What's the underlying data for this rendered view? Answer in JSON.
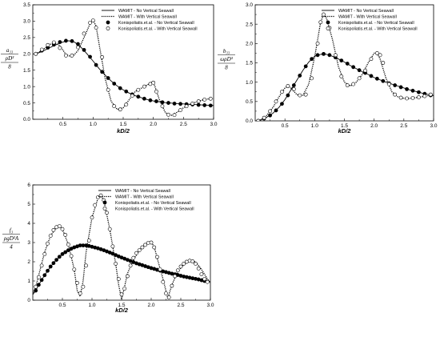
{
  "chart_data": [
    {
      "type": "line",
      "xlabel": "kD/2",
      "ylabel": {
        "numerator": "a₃₃",
        "denominator_top": "ρD³",
        "denominator_bottom": "8"
      },
      "xlim": [
        0.0,
        3.0
      ],
      "ylim": [
        0.0,
        3.5
      ],
      "xticks": [
        "0.5",
        "1.0",
        "1.5",
        "2.0",
        "2.5",
        "3.0"
      ],
      "yticks": [
        "0.0",
        "0.5",
        "1.0",
        "1.5",
        "2.0",
        "2.5",
        "3.0",
        "3.5"
      ],
      "legend_position": "top-right",
      "series": [
        {
          "name": "WAMIT - No Vertical Seawall",
          "style": "solid",
          "x": [
            0.05,
            0.15,
            0.25,
            0.35,
            0.45,
            0.55,
            0.6,
            0.7,
            0.8,
            0.9,
            1.0,
            1.1,
            1.2,
            1.3,
            1.4,
            1.5,
            1.6,
            1.7,
            1.8,
            1.9,
            2.0,
            2.2,
            2.4,
            2.6,
            2.8,
            3.0
          ],
          "y": [
            2.0,
            2.07,
            2.16,
            2.25,
            2.33,
            2.39,
            2.4,
            2.35,
            2.2,
            2.0,
            1.78,
            1.55,
            1.35,
            1.17,
            1.02,
            0.9,
            0.8,
            0.72,
            0.66,
            0.6,
            0.56,
            0.51,
            0.48,
            0.46,
            0.44,
            0.42
          ]
        },
        {
          "name": "WAMIT - With Vertical Seawall",
          "style": "dotted",
          "x": [
            0.05,
            0.15,
            0.25,
            0.35,
            0.45,
            0.55,
            0.65,
            0.75,
            0.85,
            0.95,
            1.0,
            1.05,
            1.1,
            1.2,
            1.3,
            1.4,
            1.5,
            1.6,
            1.7,
            1.8,
            1.9,
            2.0,
            2.1,
            2.2,
            2.3,
            2.4,
            2.5,
            2.6,
            2.7,
            2.8,
            2.9,
            3.0
          ],
          "y": [
            2.0,
            2.1,
            2.25,
            2.35,
            2.25,
            1.98,
            1.9,
            2.1,
            2.5,
            2.92,
            3.03,
            2.85,
            2.3,
            1.25,
            0.55,
            0.3,
            0.35,
            0.6,
            0.85,
            0.95,
            1.05,
            1.15,
            0.6,
            0.2,
            0.12,
            0.22,
            0.35,
            0.45,
            0.52,
            0.58,
            0.62,
            0.63
          ]
        },
        {
          "name": "Konispoliatis.et.al. - No Vertical Seawall",
          "style": "filled-circle",
          "x": [
            0.05,
            0.15,
            0.25,
            0.35,
            0.45,
            0.55,
            0.65,
            0.75,
            0.85,
            0.95,
            1.05,
            1.15,
            1.25,
            1.35,
            1.45,
            1.55,
            1.65,
            1.75,
            1.85,
            1.95,
            2.05,
            2.15,
            2.25,
            2.35,
            2.45,
            2.55,
            2.65,
            2.75,
            2.85,
            2.95
          ],
          "y": [
            2.0,
            2.1,
            2.19,
            2.28,
            2.36,
            2.4,
            2.39,
            2.3,
            2.12,
            1.91,
            1.66,
            1.45,
            1.26,
            1.09,
            0.95,
            0.85,
            0.76,
            0.69,
            0.63,
            0.58,
            0.55,
            0.52,
            0.5,
            0.48,
            0.47,
            0.46,
            0.45,
            0.44,
            0.43,
            0.42
          ]
        },
        {
          "name": "Konispoliatis.et.al. - With Vertical Seawall",
          "style": "open-circle",
          "x": [
            0.05,
            0.15,
            0.25,
            0.35,
            0.45,
            0.55,
            0.65,
            0.75,
            0.85,
            0.95,
            1.0,
            1.05,
            1.15,
            1.25,
            1.35,
            1.45,
            1.55,
            1.65,
            1.75,
            1.85,
            1.95,
            2.0,
            2.05,
            2.15,
            2.25,
            2.35,
            2.45,
            2.55,
            2.65,
            2.75,
            2.85,
            2.95
          ],
          "y": [
            2.0,
            2.13,
            2.27,
            2.35,
            2.18,
            1.95,
            1.95,
            2.2,
            2.62,
            2.95,
            3.02,
            2.8,
            1.9,
            0.9,
            0.4,
            0.3,
            0.45,
            0.72,
            0.9,
            1.0,
            1.08,
            1.12,
            0.85,
            0.4,
            0.14,
            0.13,
            0.28,
            0.4,
            0.48,
            0.55,
            0.6,
            0.63
          ]
        }
      ]
    },
    {
      "type": "line",
      "xlabel": "kD/2",
      "ylabel": {
        "numerator": "b₃₃",
        "denominator_top": "ωρD³",
        "denominator_bottom": "8"
      },
      "xlim": [
        0.0,
        3.0
      ],
      "ylim": [
        0.0,
        3.0
      ],
      "xticks": [
        "0.5",
        "1.0",
        "1.5",
        "2.0",
        "2.5",
        "3.0"
      ],
      "yticks": [
        "0.0",
        "0.5",
        "1.0",
        "1.5",
        "2.0",
        "2.5",
        "3.0"
      ],
      "legend_position": "top-right",
      "series": [
        {
          "name": "WAMIT - No Vertical Seawall",
          "style": "solid",
          "x": [
            0.05,
            0.1,
            0.2,
            0.3,
            0.4,
            0.5,
            0.6,
            0.7,
            0.8,
            0.9,
            1.0,
            1.1,
            1.2,
            1.3,
            1.4,
            1.5,
            1.6,
            1.7,
            1.8,
            1.9,
            2.0,
            2.2,
            2.4,
            2.6,
            2.8,
            3.0
          ],
          "y": [
            0.0,
            0.03,
            0.1,
            0.2,
            0.35,
            0.55,
            0.8,
            1.05,
            1.3,
            1.52,
            1.67,
            1.72,
            1.72,
            1.67,
            1.6,
            1.52,
            1.43,
            1.35,
            1.27,
            1.2,
            1.12,
            1.0,
            0.9,
            0.8,
            0.72,
            0.65
          ]
        },
        {
          "name": "WAMIT - With Vertical Seawall",
          "style": "dotted",
          "x": [
            0.05,
            0.1,
            0.2,
            0.3,
            0.4,
            0.5,
            0.55,
            0.6,
            0.7,
            0.8,
            0.9,
            1.0,
            1.1,
            1.15,
            1.2,
            1.3,
            1.4,
            1.5,
            1.6,
            1.7,
            1.8,
            1.9,
            2.0,
            2.05,
            2.1,
            2.2,
            2.3,
            2.4,
            2.5,
            2.6,
            2.7,
            2.8,
            2.9,
            3.0
          ],
          "y": [
            0.0,
            0.03,
            0.15,
            0.35,
            0.62,
            0.85,
            0.9,
            0.85,
            0.68,
            0.65,
            0.95,
            1.65,
            2.55,
            2.75,
            2.65,
            2.1,
            1.4,
            1.0,
            0.9,
            1.0,
            1.2,
            1.5,
            1.75,
            1.75,
            1.6,
            1.1,
            0.75,
            0.62,
            0.58,
            0.58,
            0.6,
            0.62,
            0.65,
            0.68
          ]
        },
        {
          "name": "Konispoliatis.et.al. - No Vertical Seawall",
          "style": "filled-circle",
          "x": [
            0.05,
            0.15,
            0.25,
            0.35,
            0.45,
            0.55,
            0.65,
            0.75,
            0.85,
            0.95,
            1.05,
            1.15,
            1.25,
            1.35,
            1.45,
            1.55,
            1.65,
            1.75,
            1.85,
            1.95,
            2.05,
            2.15,
            2.25,
            2.35,
            2.45,
            2.55,
            2.65,
            2.75,
            2.85,
            2.95
          ],
          "y": [
            0.0,
            0.06,
            0.14,
            0.27,
            0.44,
            0.66,
            0.92,
            1.17,
            1.41,
            1.6,
            1.7,
            1.73,
            1.7,
            1.64,
            1.56,
            1.48,
            1.39,
            1.31,
            1.24,
            1.16,
            1.09,
            1.03,
            0.97,
            0.92,
            0.87,
            0.82,
            0.78,
            0.74,
            0.7,
            0.66
          ]
        },
        {
          "name": "Konispoliatis.et.al. - With Vertical Seawall",
          "style": "open-circle",
          "x": [
            0.05,
            0.15,
            0.25,
            0.35,
            0.45,
            0.55,
            0.65,
            0.75,
            0.85,
            0.95,
            1.05,
            1.1,
            1.15,
            1.25,
            1.35,
            1.45,
            1.55,
            1.65,
            1.75,
            1.85,
            1.95,
            2.05,
            2.1,
            2.15,
            2.25,
            2.35,
            2.45,
            2.55,
            2.65,
            2.75,
            2.85,
            2.95
          ],
          "y": [
            0.0,
            0.08,
            0.25,
            0.5,
            0.75,
            0.9,
            0.82,
            0.66,
            0.68,
            1.1,
            2.0,
            2.55,
            2.75,
            2.4,
            1.7,
            1.15,
            0.92,
            0.95,
            1.1,
            1.3,
            1.6,
            1.75,
            1.7,
            1.5,
            0.95,
            0.68,
            0.6,
            0.58,
            0.59,
            0.61,
            0.64,
            0.68
          ]
        }
      ]
    },
    {
      "type": "line",
      "xlabel": "kD/2",
      "ylabel": {
        "numerator": "f₃",
        "denominator_top": "ρgD²A",
        "denominator_bottom": "4"
      },
      "xlim": [
        0.0,
        3.0
      ],
      "ylim": [
        0,
        6
      ],
      "xticks": [
        "0.5",
        "1.0",
        "1.5",
        "2.0",
        "2.5",
        "3.0"
      ],
      "yticks": [
        "0",
        "1",
        "2",
        "3",
        "4",
        "5",
        "6"
      ],
      "legend_position": "top-right",
      "series": [
        {
          "name": "WAMIT - No Vertical Seawall",
          "style": "solid",
          "x": [
            0.0,
            0.05,
            0.1,
            0.2,
            0.3,
            0.4,
            0.5,
            0.6,
            0.7,
            0.8,
            0.9,
            1.0,
            1.1,
            1.2,
            1.3,
            1.4,
            1.5,
            1.6,
            1.7,
            1.8,
            1.9,
            2.0,
            2.2,
            2.4,
            2.6,
            2.8,
            3.0
          ],
          "y": [
            0.3,
            0.5,
            0.8,
            1.3,
            1.75,
            2.1,
            2.4,
            2.6,
            2.75,
            2.85,
            2.85,
            2.78,
            2.7,
            2.6,
            2.48,
            2.35,
            2.22,
            2.1,
            1.98,
            1.87,
            1.77,
            1.67,
            1.5,
            1.35,
            1.2,
            1.08,
            0.95
          ]
        },
        {
          "name": "WAMIT - With Vertical Seawall",
          "style": "dotted",
          "x": [
            0.0,
            0.05,
            0.1,
            0.2,
            0.3,
            0.4,
            0.45,
            0.5,
            0.6,
            0.7,
            0.75,
            0.8,
            0.85,
            0.9,
            1.0,
            1.1,
            1.15,
            1.2,
            1.3,
            1.4,
            1.45,
            1.5,
            1.55,
            1.6,
            1.7,
            1.8,
            1.9,
            2.0,
            2.05,
            2.1,
            2.2,
            2.28,
            2.35,
            2.45,
            2.55,
            2.65,
            2.75,
            2.85,
            2.95,
            3.0
          ],
          "y": [
            0.3,
            0.7,
            1.3,
            2.5,
            3.35,
            3.8,
            3.85,
            3.7,
            2.9,
            1.6,
            0.5,
            0.2,
            1.0,
            2.5,
            4.3,
            5.3,
            5.45,
            5.2,
            3.7,
            1.9,
            0.8,
            0.05,
            0.7,
            1.4,
            2.1,
            2.6,
            2.9,
            3.0,
            2.8,
            2.2,
            1.1,
            0.1,
            0.8,
            1.5,
            1.85,
            2.05,
            2.0,
            1.6,
            1.1,
            0.9
          ]
        },
        {
          "name": "Konispoliatis.et.al. - No Vertical Seawall",
          "style": "filled-circle",
          "x": [
            0.05,
            0.1,
            0.15,
            0.2,
            0.25,
            0.3,
            0.35,
            0.4,
            0.45,
            0.5,
            0.55,
            0.6,
            0.65,
            0.7,
            0.75,
            0.8,
            0.85,
            0.9,
            0.95,
            1.0,
            1.05,
            1.1,
            1.15,
            1.2,
            1.25,
            1.3,
            1.35,
            1.4,
            1.45,
            1.5,
            1.55,
            1.6,
            1.65,
            1.7,
            1.75,
            1.8,
            1.85,
            1.9,
            1.95,
            2.0,
            2.05,
            2.1,
            2.15,
            2.2,
            2.25,
            2.3,
            2.35,
            2.4,
            2.45,
            2.5,
            2.55,
            2.6,
            2.65,
            2.7,
            2.75,
            2.8,
            2.85,
            2.9,
            2.95
          ],
          "y": [
            0.5,
            0.8,
            1.05,
            1.3,
            1.53,
            1.75,
            1.93,
            2.1,
            2.26,
            2.4,
            2.5,
            2.6,
            2.68,
            2.75,
            2.8,
            2.85,
            2.85,
            2.85,
            2.82,
            2.78,
            2.74,
            2.7,
            2.65,
            2.6,
            2.54,
            2.48,
            2.42,
            2.35,
            2.28,
            2.22,
            2.16,
            2.1,
            2.04,
            1.98,
            1.92,
            1.87,
            1.82,
            1.77,
            1.72,
            1.67,
            1.63,
            1.58,
            1.54,
            1.5,
            1.46,
            1.42,
            1.38,
            1.35,
            1.31,
            1.27,
            1.23,
            1.2,
            1.17,
            1.14,
            1.11,
            1.08,
            1.04,
            1.0,
            0.97
          ]
        },
        {
          "name": "Konispoliatis.et.al. - With Vertical Seawall",
          "style": "open-circle",
          "x": [
            0.05,
            0.1,
            0.15,
            0.2,
            0.25,
            0.3,
            0.35,
            0.4,
            0.45,
            0.5,
            0.55,
            0.6,
            0.65,
            0.7,
            0.75,
            0.8,
            0.85,
            0.9,
            0.95,
            1.0,
            1.05,
            1.1,
            1.15,
            1.2,
            1.25,
            1.3,
            1.35,
            1.4,
            1.45,
            1.5,
            1.55,
            1.6,
            1.65,
            1.7,
            1.75,
            1.8,
            1.85,
            1.9,
            1.95,
            2.0,
            2.05,
            2.1,
            2.15,
            2.2,
            2.25,
            2.3,
            2.35,
            2.4,
            2.45,
            2.5,
            2.55,
            2.6,
            2.65,
            2.7,
            2.75,
            2.8,
            2.85,
            2.9,
            2.95
          ],
          "y": [
            0.7,
            1.2,
            1.8,
            2.4,
            2.95,
            3.35,
            3.65,
            3.8,
            3.85,
            3.7,
            3.4,
            2.9,
            2.3,
            1.6,
            0.9,
            0.35,
            0.7,
            1.8,
            3.1,
            4.3,
            4.95,
            5.35,
            5.45,
            5.2,
            4.55,
            3.7,
            2.8,
            1.9,
            1.1,
            0.3,
            0.6,
            1.25,
            1.8,
            2.2,
            2.45,
            2.6,
            2.75,
            2.88,
            2.98,
            3.0,
            2.75,
            2.25,
            1.6,
            0.95,
            0.35,
            0.15,
            0.75,
            1.25,
            1.55,
            1.75,
            1.9,
            2.0,
            2.05,
            2.02,
            1.9,
            1.65,
            1.35,
            1.1,
            0.95
          ]
        }
      ]
    }
  ]
}
